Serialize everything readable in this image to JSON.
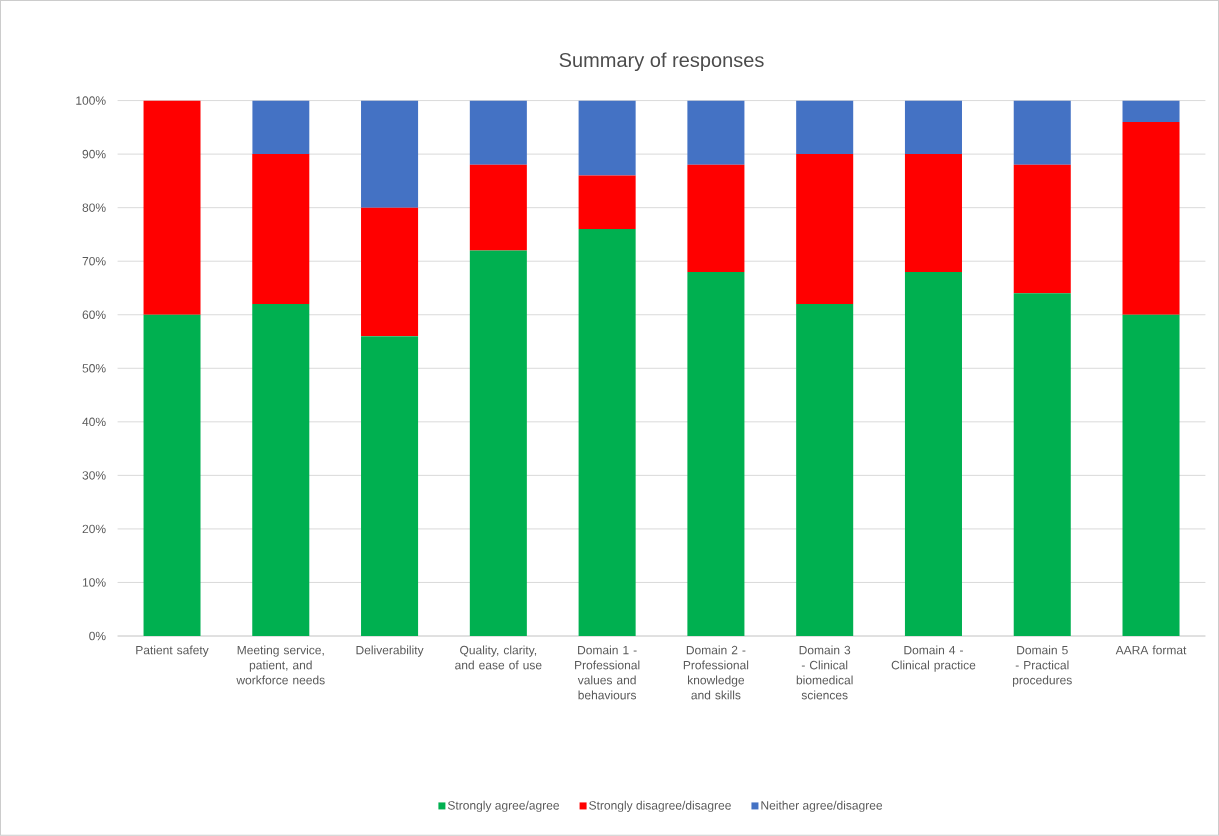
{
  "chart_data": {
    "type": "bar",
    "title": "Summary of responses",
    "stacked": true,
    "categories": [
      "Patient safety",
      "Meeting service, patient, and workforce needs",
      "Deliverability",
      "Quality, clarity, and ease of use",
      "Domain 1 - Professional values and behaviours",
      "Domain 2 - Professional knowledge and skills",
      "Domain 3 - Clinical biomedical sciences",
      "Domain 4 - Clinical practice",
      "Domain 5 - Practical procedures",
      "AARA format"
    ],
    "series": [
      {
        "name": "Strongly agree/agree",
        "color": "#00b050",
        "values": [
          60,
          62,
          56,
          72,
          76,
          68,
          62,
          68,
          64,
          60
        ]
      },
      {
        "name": "Strongly disagree/disagree",
        "color": "#ff0000",
        "values": [
          40,
          28,
          24,
          16,
          10,
          20,
          28,
          22,
          24,
          36
        ]
      },
      {
        "name": "Neither agree/disagree",
        "color": "#4472c4",
        "values": [
          0,
          10,
          20,
          12,
          14,
          12,
          10,
          10,
          12,
          4
        ]
      }
    ],
    "ylim": [
      0,
      100
    ],
    "yticks": [
      {
        "value": 0,
        "label": "0%"
      },
      {
        "value": 10,
        "label": "10%"
      },
      {
        "value": 20,
        "label": "20%"
      },
      {
        "value": 30,
        "label": "30%"
      },
      {
        "value": 40,
        "label": "40%"
      },
      {
        "value": 50,
        "label": "50%"
      },
      {
        "value": 60,
        "label": "60%"
      },
      {
        "value": 70,
        "label": "70%"
      },
      {
        "value": 80,
        "label": "80%"
      },
      {
        "value": 90,
        "label": "90%"
      },
      {
        "value": 100,
        "label": "100%"
      }
    ],
    "grid": "y",
    "legend": "bottom"
  }
}
